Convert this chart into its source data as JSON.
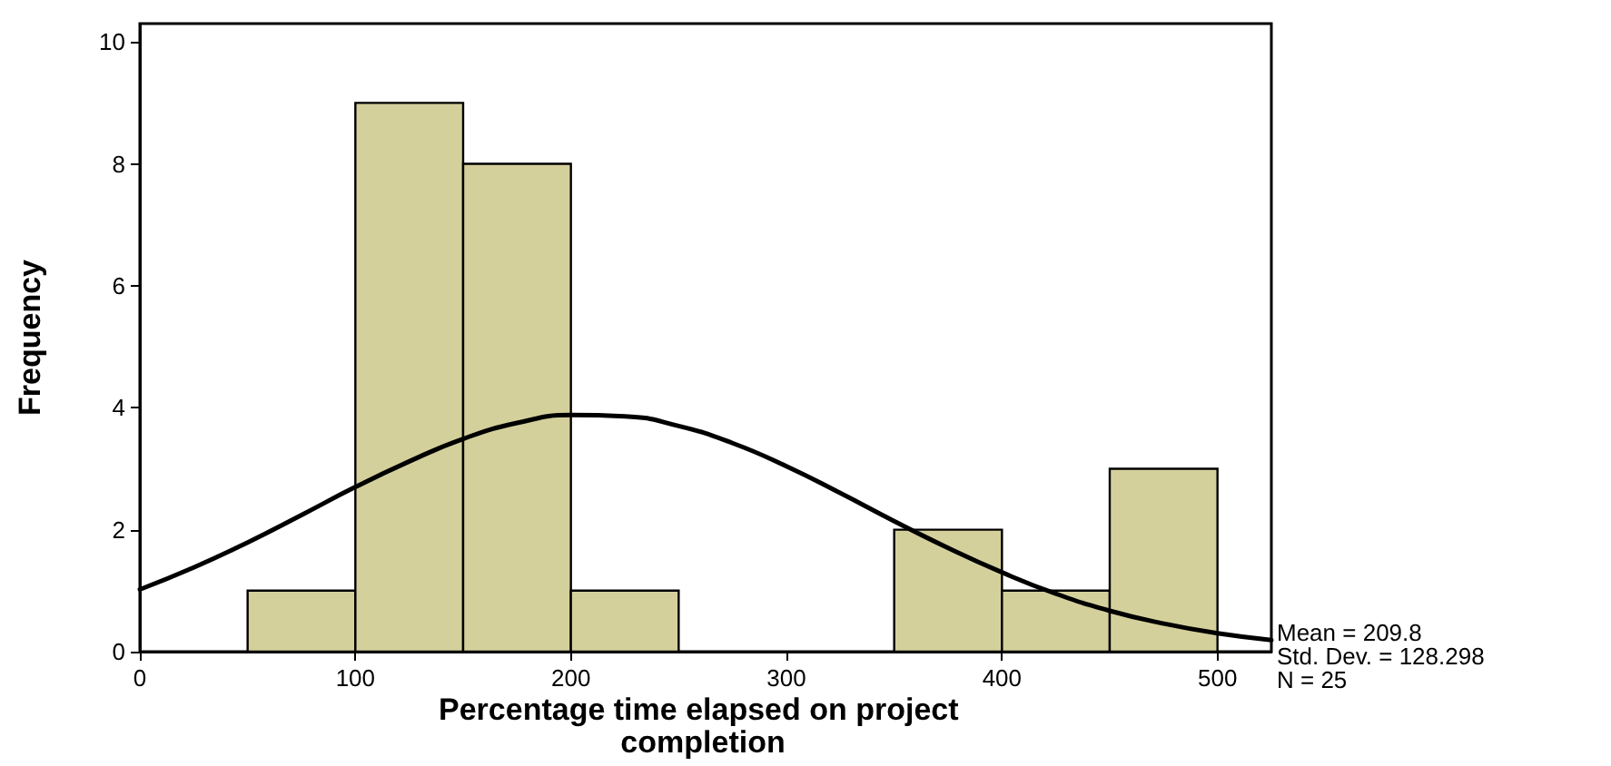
{
  "chart_data": {
    "type": "histogram",
    "xlabel": "Percentage time elapsed on project completion",
    "ylabel": "Frequency",
    "bins": [
      50,
      100,
      150,
      200,
      250,
      300,
      350,
      400,
      450,
      500
    ],
    "values": [
      1,
      9,
      8,
      1,
      0,
      0,
      2,
      1,
      3
    ],
    "color": "#d4d09c",
    "series": [
      {
        "type": "line",
        "color": "#000000",
        "x": [
          0,
          25,
          50,
          75,
          100,
          125,
          150,
          175,
          200,
          225,
          250,
          275,
          300,
          325,
          350,
          375,
          400,
          425,
          450,
          475,
          500,
          525
        ],
        "values": [
          1.02,
          1.38,
          1.79,
          2.24,
          2.7,
          3.12,
          3.49,
          3.75,
          3.88,
          3.86,
          3.7,
          3.42,
          3.04,
          2.6,
          2.14,
          1.7,
          1.3,
          0.95,
          0.67,
          0.46,
          0.3,
          0.19
        ]
      }
    ],
    "xlim": [
      0,
      525
    ],
    "xticks": [
      0,
      100,
      200,
      300,
      400,
      500
    ],
    "ylim": [
      0,
      10.3
    ],
    "yticks": [
      0,
      2,
      4,
      6,
      8,
      10
    ],
    "grid": false,
    "marker": "none",
    "annotations": [
      "Mean = 209.8",
      "Std. Dev. = 128.298",
      "N = 25"
    ]
  }
}
